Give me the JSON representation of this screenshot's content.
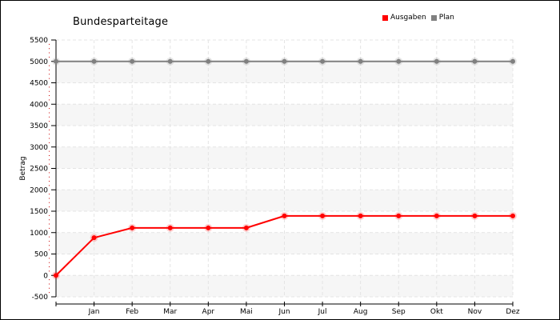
{
  "chart_data": {
    "type": "line",
    "title": "Bundesparteitage",
    "ylabel": "Betrag",
    "xlabel": "",
    "categories": [
      "",
      "Jan",
      "Feb",
      "Mar",
      "Apr",
      "Mai",
      "Jun",
      "Jul",
      "Aug",
      "Sep",
      "Okt",
      "Nov",
      "Dez"
    ],
    "ylim": [
      -500,
      5500
    ],
    "yticks": [
      -500,
      0,
      500,
      1000,
      1500,
      2000,
      2500,
      3000,
      3500,
      4000,
      4500,
      5000,
      5500
    ],
    "grid": true,
    "legend_position": "top-right",
    "series": [
      {
        "name": "Ausgaben",
        "color": "#ff0000",
        "values": [
          0,
          880,
          1110,
          1110,
          1110,
          1110,
          1390,
          1390,
          1390,
          1390,
          1390,
          1390,
          1390
        ]
      },
      {
        "name": "Plan",
        "color": "#808080",
        "values": [
          5000,
          5000,
          5000,
          5000,
          5000,
          5000,
          5000,
          5000,
          5000,
          5000,
          5000,
          5000,
          5000
        ]
      }
    ]
  }
}
